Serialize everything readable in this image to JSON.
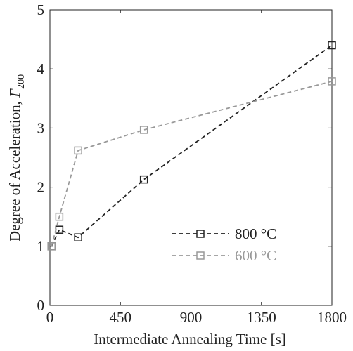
{
  "chart_data": {
    "type": "line",
    "xlabel": "Intermediate Annealing Time [s]",
    "ylabel": {
      "text": "Degree of Acceleration, ",
      "symbol": "Γ",
      "subscript": "200"
    },
    "x": [
      10,
      60,
      180,
      600,
      1800
    ],
    "series": [
      {
        "name": "800 °C",
        "color": "#222222",
        "values": [
          1.0,
          1.28,
          1.15,
          2.13,
          4.4
        ]
      },
      {
        "name": "600 °C",
        "color": "#999999",
        "values": [
          1.0,
          1.5,
          2.62,
          2.97,
          3.79
        ]
      }
    ],
    "xlim": [
      0,
      1800
    ],
    "xticks": [
      0,
      450,
      900,
      1350,
      1800
    ],
    "ylim": [
      0,
      5
    ],
    "yticks": [
      0,
      1,
      2,
      3,
      4,
      5
    ],
    "grid": false,
    "legend": "lower right"
  }
}
